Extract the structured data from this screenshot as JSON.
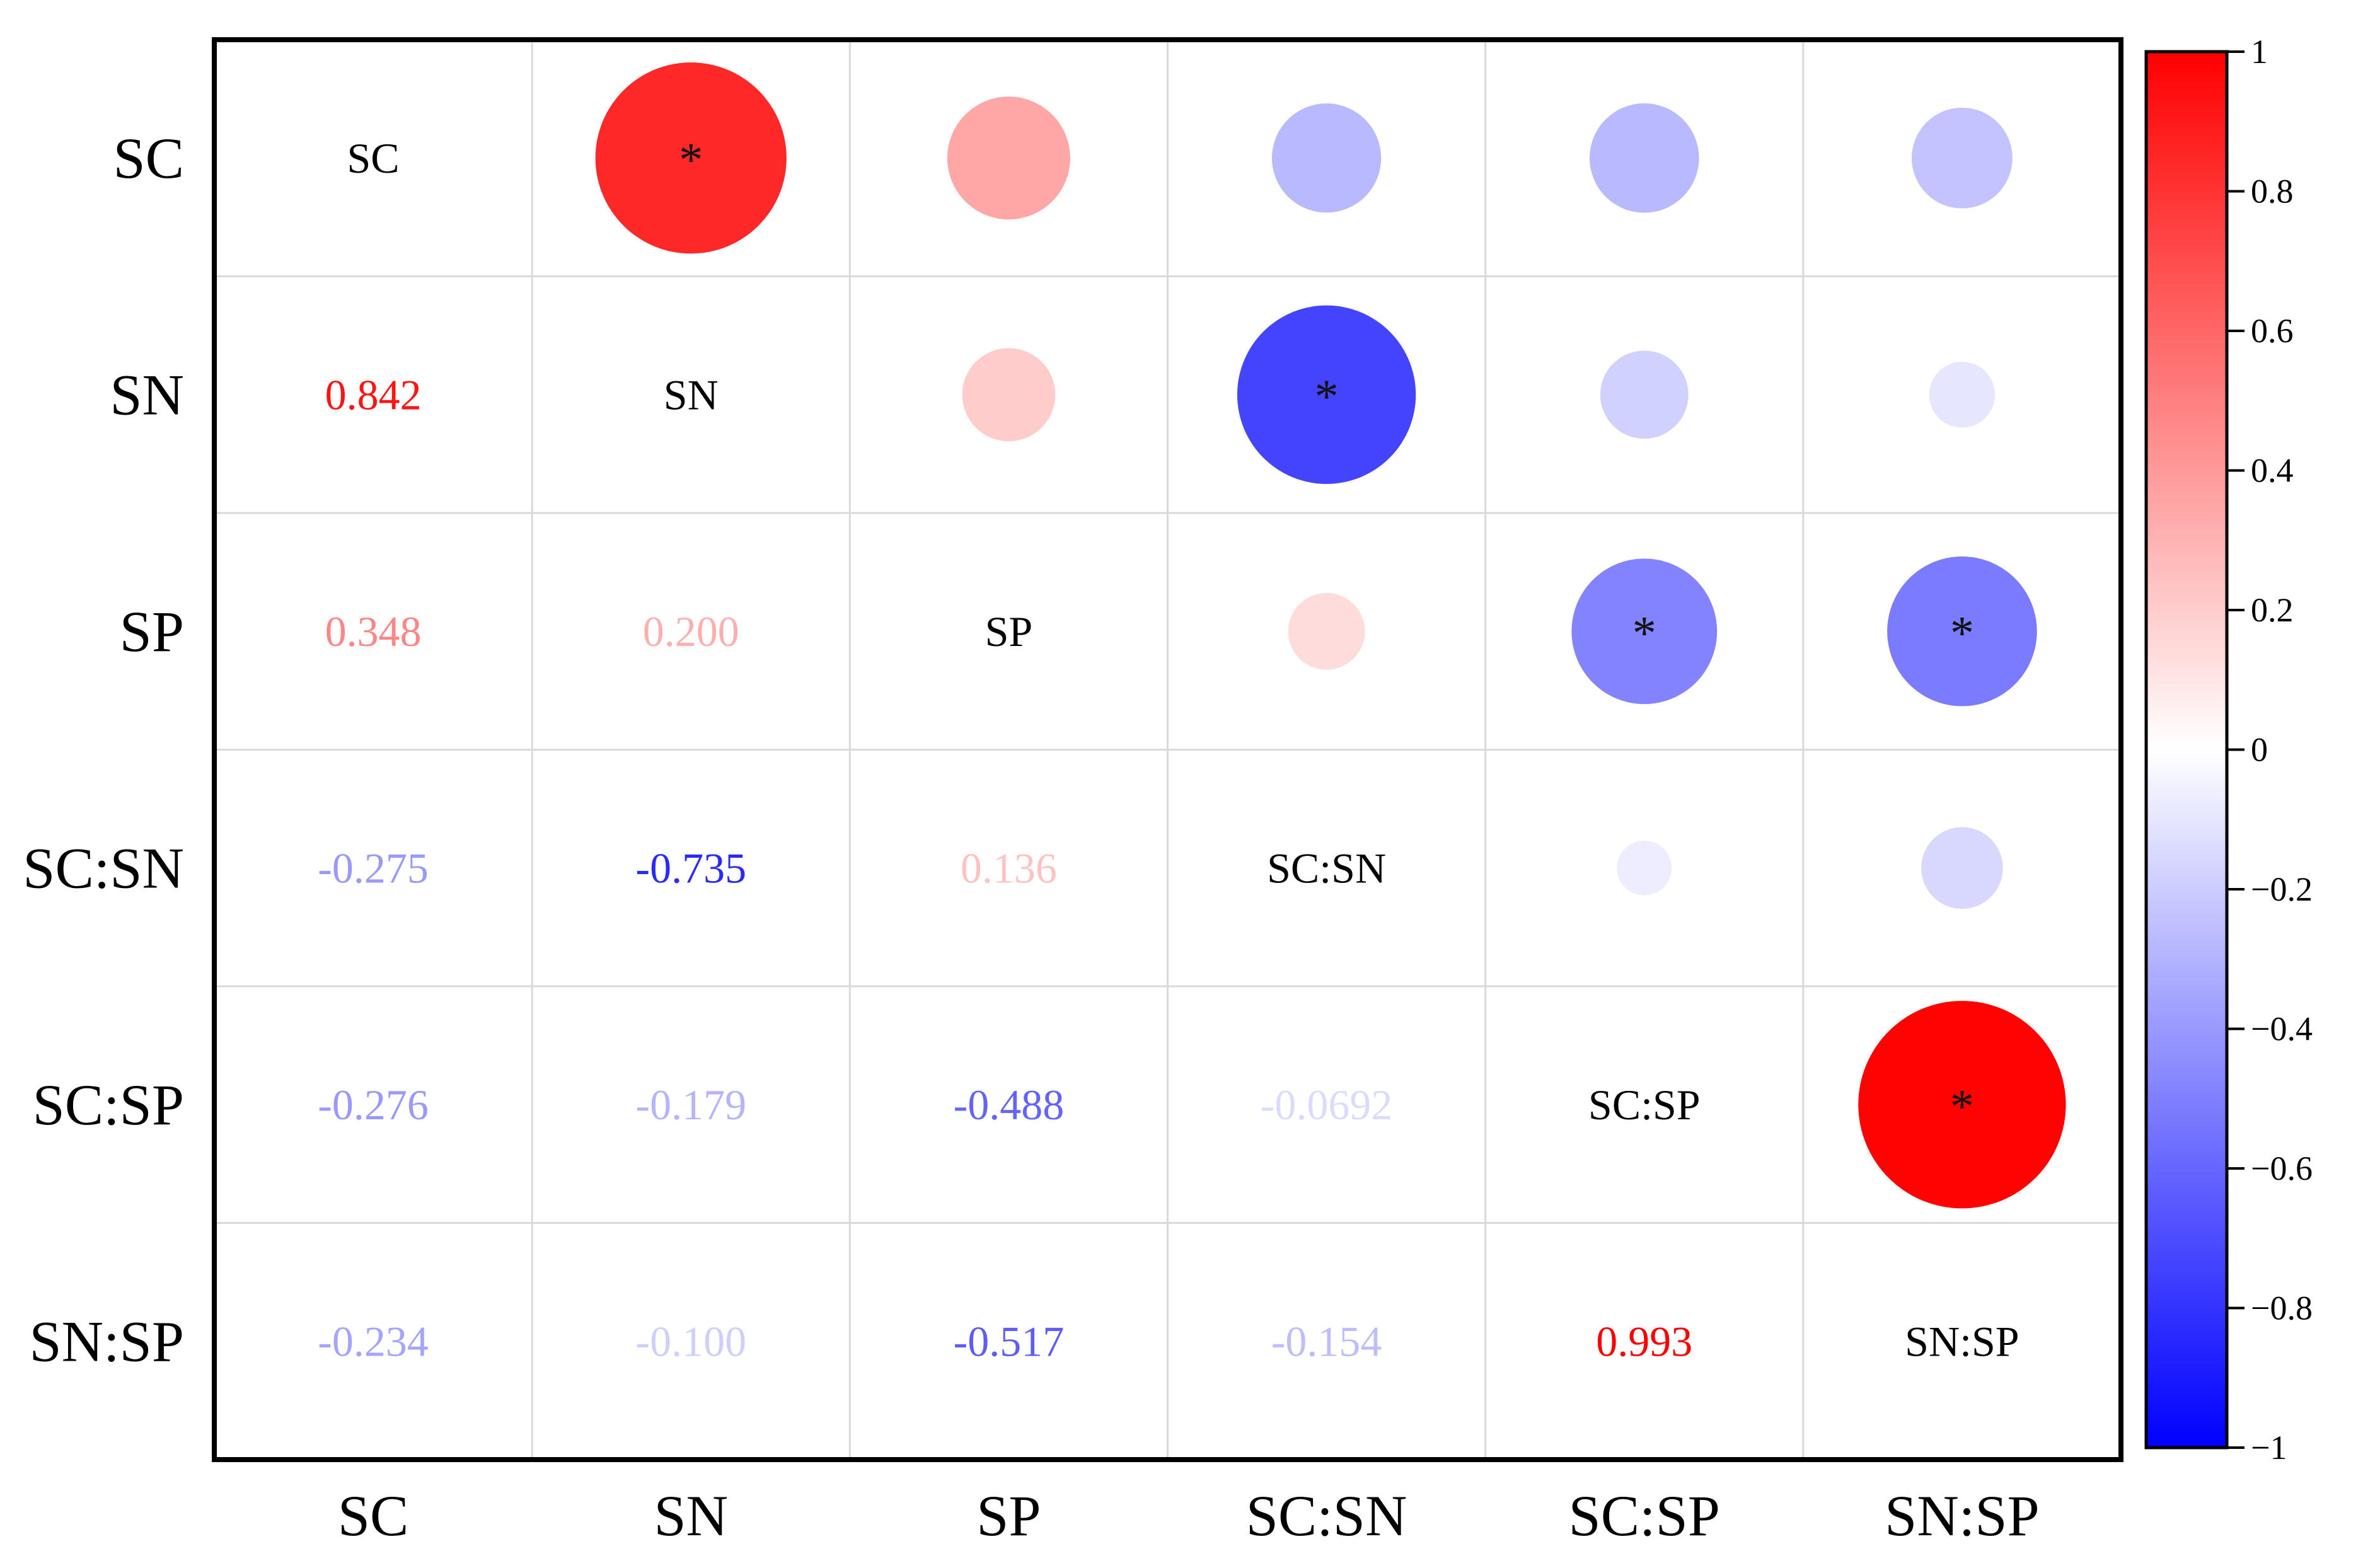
{
  "chart_data": {
    "type": "heatmap",
    "subtype": "correlation-matrix",
    "variables": [
      "SC",
      "SN",
      "SP",
      "SC:SN",
      "SC:SP",
      "SN:SP"
    ],
    "matrix": [
      [
        1,
        0.842,
        0.348,
        -0.275,
        -0.276,
        -0.234
      ],
      [
        0.842,
        1,
        0.2,
        -0.735,
        -0.179,
        -0.1
      ],
      [
        0.348,
        0.2,
        1,
        0.136,
        -0.488,
        -0.517
      ],
      [
        -0.275,
        -0.735,
        0.136,
        1,
        -0.0692,
        -0.154
      ],
      [
        -0.276,
        -0.179,
        -0.488,
        -0.0692,
        1,
        0.993
      ],
      [
        -0.234,
        -0.1,
        -0.517,
        -0.154,
        0.993,
        1
      ]
    ],
    "lower_labels": [
      {
        "row": 1,
        "col": 0,
        "text": "0.842",
        "value": 0.842
      },
      {
        "row": 2,
        "col": 0,
        "text": "0.348",
        "value": 0.348
      },
      {
        "row": 2,
        "col": 1,
        "text": "0.200",
        "value": 0.2
      },
      {
        "row": 3,
        "col": 0,
        "text": "-0.275",
        "value": -0.275
      },
      {
        "row": 3,
        "col": 1,
        "text": "-0.735",
        "value": -0.735
      },
      {
        "row": 3,
        "col": 2,
        "text": "0.136",
        "value": 0.136
      },
      {
        "row": 4,
        "col": 0,
        "text": "-0.276",
        "value": -0.276
      },
      {
        "row": 4,
        "col": 1,
        "text": "-0.179",
        "value": -0.179
      },
      {
        "row": 4,
        "col": 2,
        "text": "-0.488",
        "value": -0.488
      },
      {
        "row": 4,
        "col": 3,
        "text": "-0.0692",
        "value": -0.0692
      },
      {
        "row": 5,
        "col": 0,
        "text": "-0.234",
        "value": -0.234
      },
      {
        "row": 5,
        "col": 1,
        "text": "-0.100",
        "value": -0.1
      },
      {
        "row": 5,
        "col": 2,
        "text": "-0.517",
        "value": -0.517
      },
      {
        "row": 5,
        "col": 3,
        "text": "-0.154",
        "value": -0.154
      },
      {
        "row": 5,
        "col": 4,
        "text": "0.993",
        "value": 0.993
      }
    ],
    "upper_circles": [
      {
        "row": 0,
        "col": 1,
        "value": 0.842,
        "significant": true
      },
      {
        "row": 0,
        "col": 2,
        "value": 0.348,
        "significant": false
      },
      {
        "row": 0,
        "col": 3,
        "value": -0.275,
        "significant": false
      },
      {
        "row": 0,
        "col": 4,
        "value": -0.276,
        "significant": false
      },
      {
        "row": 0,
        "col": 5,
        "value": -0.234,
        "significant": false
      },
      {
        "row": 1,
        "col": 2,
        "value": 0.2,
        "significant": false
      },
      {
        "row": 1,
        "col": 3,
        "value": -0.735,
        "significant": true
      },
      {
        "row": 1,
        "col": 4,
        "value": -0.179,
        "significant": false
      },
      {
        "row": 1,
        "col": 5,
        "value": -0.1,
        "significant": false
      },
      {
        "row": 2,
        "col": 3,
        "value": 0.136,
        "significant": false
      },
      {
        "row": 2,
        "col": 4,
        "value": -0.488,
        "significant": true
      },
      {
        "row": 2,
        "col": 5,
        "value": -0.517,
        "significant": true
      },
      {
        "row": 3,
        "col": 4,
        "value": -0.0692,
        "significant": false
      },
      {
        "row": 3,
        "col": 5,
        "value": -0.154,
        "significant": false
      },
      {
        "row": 4,
        "col": 5,
        "value": 0.993,
        "significant": true
      }
    ],
    "significance_marker": "*",
    "colorbar": {
      "range": [
        -1,
        1
      ],
      "ticks": [
        "1",
        "0.8",
        "0.6",
        "0.4",
        "0.2",
        "0",
        "−0.2",
        "−0.4",
        "−0.6",
        "−0.8",
        "−1"
      ],
      "tick_values": [
        1,
        0.8,
        0.6,
        0.4,
        0.2,
        0,
        -0.2,
        -0.4,
        -0.6,
        -0.8,
        -1
      ],
      "low_color": "#0000ff",
      "mid_color": "#ffffff",
      "high_color": "#ff0000"
    },
    "title": "",
    "grid": true
  }
}
